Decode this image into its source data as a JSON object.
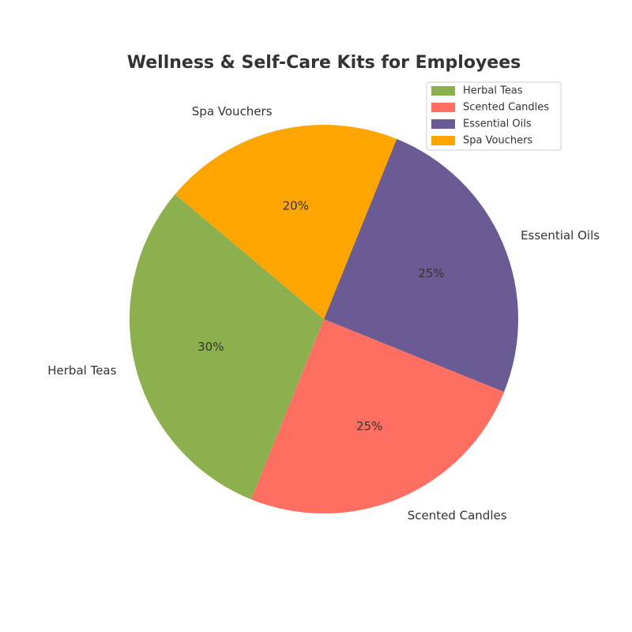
{
  "chart_data": {
    "type": "pie",
    "title": "Wellness & Self-Care Kits for Employees",
    "categories": [
      "Herbal Teas",
      "Scented Candles",
      "Essential Oils",
      "Spa Vouchers"
    ],
    "values": [
      30,
      25,
      25,
      20
    ],
    "value_labels": [
      "30%",
      "25%",
      "25%",
      "20%"
    ],
    "colors": [
      "#8db04e",
      "#ff6f61",
      "#6b5b95",
      "#ffa500"
    ],
    "start_angle_deg": 140,
    "direction": "counterclockwise",
    "legend": {
      "position": "top-right",
      "entries": [
        "Herbal Teas",
        "Scented Candles",
        "Essential Oils",
        "Spa Vouchers"
      ]
    }
  }
}
